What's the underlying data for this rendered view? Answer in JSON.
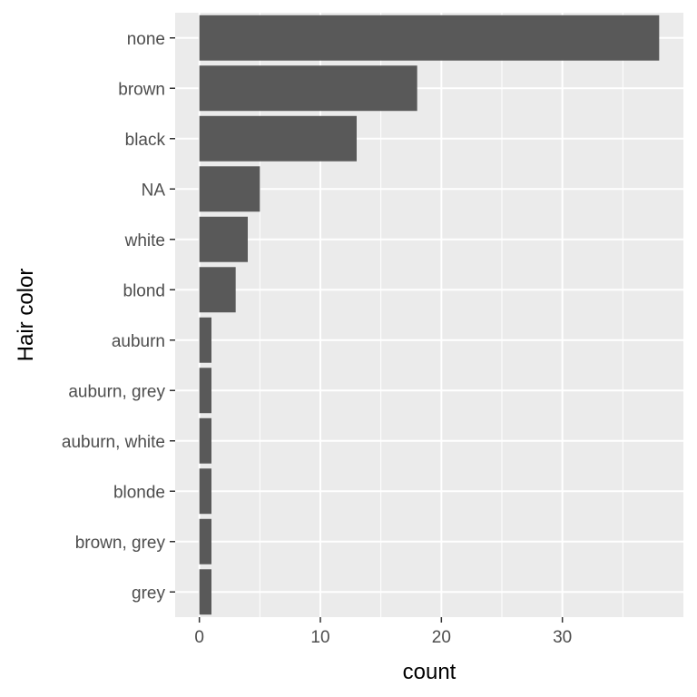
{
  "chart_data": {
    "type": "bar",
    "orientation": "horizontal",
    "categories": [
      "none",
      "brown",
      "black",
      "NA",
      "white",
      "blond",
      "auburn",
      "auburn, grey",
      "auburn, white",
      "blonde",
      "brown, grey",
      "grey"
    ],
    "values": [
      38,
      18,
      13,
      5,
      4,
      3,
      1,
      1,
      1,
      1,
      1,
      1
    ],
    "xlabel": "count",
    "ylabel": "Hair color",
    "xlim": [
      -2,
      40
    ],
    "xticks": [
      0,
      10,
      20,
      30
    ],
    "grid": true,
    "colors": {
      "panel": "#EBEBEB",
      "grid": "#FFFFFF",
      "bar": "#595959",
      "tick_text": "#4D4D4D",
      "title_text": "#000000"
    }
  }
}
